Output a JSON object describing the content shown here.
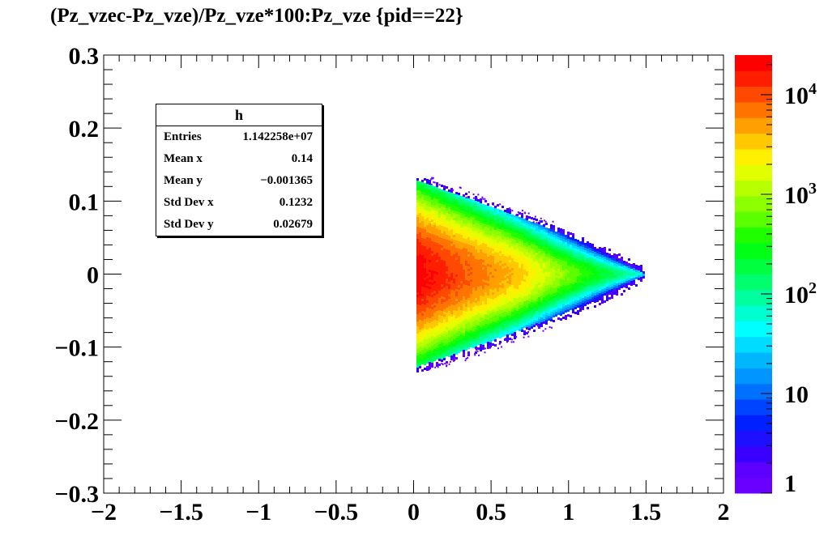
{
  "title": "(Pz_vzec-Pz_vze)/Pz_vze*100:Pz_vze {pid==22}",
  "stats": {
    "name": "h",
    "rows": [
      {
        "label": "Entries",
        "value": "1.142258e+07"
      },
      {
        "label": "Mean x",
        "value": "0.14"
      },
      {
        "label": "Mean y",
        "value": "−0.001365"
      },
      {
        "label": "Std Dev x",
        "value": "0.1232"
      },
      {
        "label": "Std Dev y",
        "value": "0.02679"
      }
    ]
  },
  "chart_data": {
    "type": "heatmap",
    "title": "(Pz_vzec-Pz_vze)/Pz_vze*100:Pz_vze {pid==22}",
    "xlabel": "",
    "ylabel": "",
    "xlim": [
      -2,
      2
    ],
    "ylim": [
      -0.3,
      0.3
    ],
    "x_ticks": [
      -2,
      -1.5,
      -1,
      -0.5,
      0,
      0.5,
      1,
      1.5,
      2
    ],
    "x_tick_labels": [
      "−2",
      "−1.5",
      "−1",
      "−0.5",
      "0",
      "0.5",
      "1",
      "1.5",
      "2"
    ],
    "y_ticks": [
      -0.3,
      -0.2,
      -0.1,
      0,
      0.1,
      0.2,
      0.3
    ],
    "y_tick_labels": [
      "−0.3",
      "−0.2",
      "−0.1",
      "0",
      "0.1",
      "0.2",
      "0.3"
    ],
    "z_scale": "log",
    "zlim": [
      1,
      25000
    ],
    "z_tick_values": [
      1,
      10,
      100,
      1000,
      10000
    ],
    "z_tick_labels": [
      "1",
      "10",
      "10^2",
      "10^3",
      "10^4"
    ],
    "palette": [
      "#6a00ff",
      "#5c00ff",
      "#3a00ff",
      "#1e10ff",
      "#0020ff",
      "#0044ff",
      "#0070ff",
      "#0095ff",
      "#00b6ff",
      "#00dcff",
      "#00ffff",
      "#00ffd0",
      "#00ff9e",
      "#00ff6e",
      "#00ff3e",
      "#00ff14",
      "#20ff00",
      "#5cff00",
      "#8cff00",
      "#b8ff00",
      "#e2ff00",
      "#fff000",
      "#ffc800",
      "#ffa000",
      "#ff7400",
      "#ff4800",
      "#ff1e00",
      "#ff0000"
    ],
    "distribution": {
      "x_start": 0.02,
      "x_end": 1.48,
      "center_y": 0,
      "half_width_at_start": 0.125,
      "peak_region": {
        "x": [
          0.02,
          0.15
        ],
        "y": [
          -0.02,
          0.02
        ]
      }
    },
    "grid": false,
    "legend": "none"
  }
}
